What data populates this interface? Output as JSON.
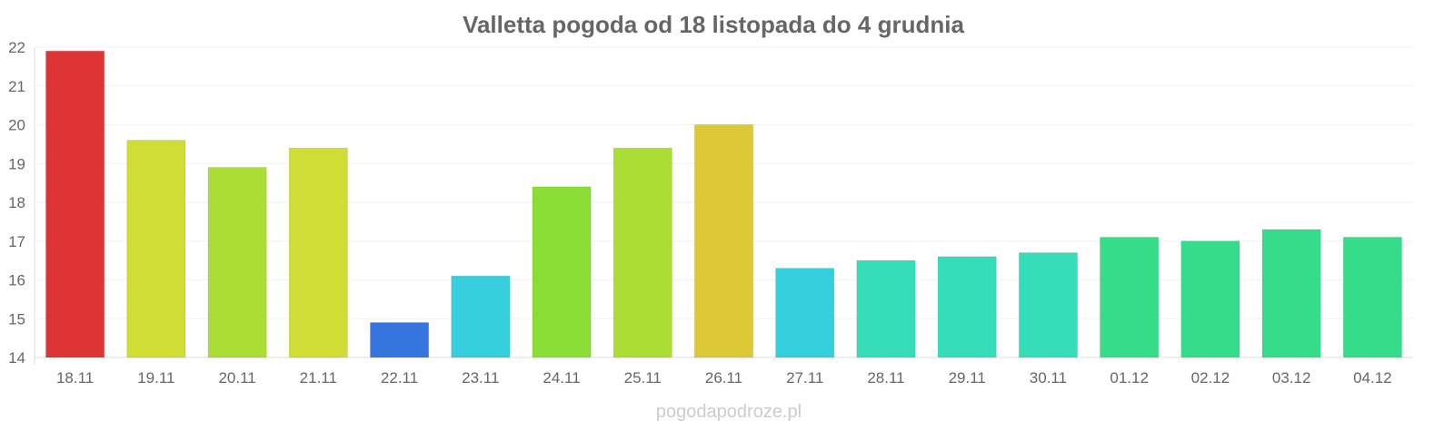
{
  "chart_data": {
    "type": "bar",
    "title": "Valletta pogoda od 18 listopada do 4 grudnia",
    "xlabel": "",
    "ylabel": "",
    "ylim": [
      14,
      22
    ],
    "yticks": [
      14,
      15,
      16,
      17,
      18,
      19,
      20,
      21,
      22
    ],
    "grid": true,
    "categories": [
      "18.11",
      "19.11",
      "20.11",
      "21.11",
      "22.11",
      "23.11",
      "24.11",
      "25.11",
      "26.11",
      "27.11",
      "28.11",
      "29.11",
      "30.11",
      "01.12",
      "02.12",
      "03.12",
      "04.12"
    ],
    "values": [
      21.9,
      19.6,
      18.9,
      19.4,
      14.9,
      16.1,
      18.4,
      19.4,
      20.0,
      16.3,
      16.5,
      16.6,
      16.7,
      17.1,
      17.0,
      17.3,
      17.1
    ],
    "colors": [
      "#dd3535",
      "#cfdd35",
      "#acdd35",
      "#cfdd35",
      "#3575dd",
      "#35cfdd",
      "#8add35",
      "#acdd35",
      "#ddc935",
      "#35cfdd",
      "#35ddb9",
      "#35ddb9",
      "#35ddb9",
      "#35dd8a",
      "#35dd8a",
      "#35dd8a",
      "#35dd8a"
    ]
  },
  "watermark": "pogodapodroze.pl"
}
